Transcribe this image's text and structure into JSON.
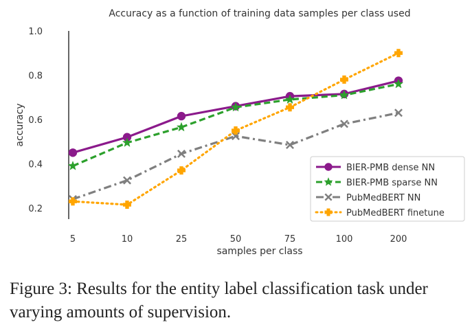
{
  "chart_data": {
    "type": "line",
    "title": "Accuracy as a function of training data samples per class used",
    "xlabel": "samples per class",
    "ylabel": "accuracy",
    "categories": [
      "5",
      "10",
      "25",
      "50",
      "75",
      "100",
      "200"
    ],
    "ylim": [
      0.15,
      1.0
    ],
    "yticks": [
      "0.2",
      "0.4",
      "0.6",
      "0.8",
      "1.0"
    ],
    "grid": false,
    "legend_position": "bottom-right",
    "series": [
      {
        "name": "BIER-PMB dense NN",
        "values": [
          0.45,
          0.52,
          0.615,
          0.66,
          0.705,
          0.715,
          0.775
        ],
        "color": "#8b1a8b",
        "line_style": "solid",
        "marker": "circle"
      },
      {
        "name": "BIER-PMB sparse NN",
        "values": [
          0.39,
          0.495,
          0.565,
          0.655,
          0.69,
          0.71,
          0.76
        ],
        "color": "#2ca02c",
        "line_style": "dashed",
        "marker": "star"
      },
      {
        "name": "PubMedBERT NN",
        "values": [
          0.24,
          0.325,
          0.445,
          0.525,
          0.485,
          0.58,
          0.63
        ],
        "color": "#7f7f7f",
        "line_style": "dashdot",
        "marker": "x"
      },
      {
        "name": "PubMedBERT finetune",
        "values": [
          0.23,
          0.215,
          0.37,
          0.55,
          0.655,
          0.78,
          0.9
        ],
        "color": "#ffa500",
        "line_style": "dotted",
        "marker": "plus"
      }
    ]
  },
  "caption": "Figure 3: Results for the entity label classification task under varying amounts of supervision."
}
